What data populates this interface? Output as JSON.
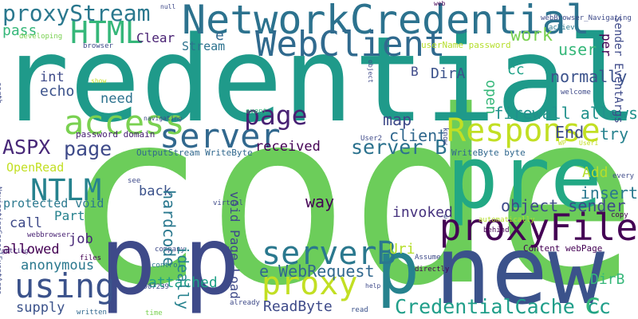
{
  "words": [
    {
      "text": "code",
      "color": "#6ccd5a",
      "vertical": false
    },
    {
      "text": "credential",
      "color": "#1f9a8a",
      "vertical": false
    },
    {
      "text": "p",
      "color": "#3e4a89",
      "vertical": false
    },
    {
      "text": "p",
      "color": "#3e4a89",
      "vertical": false
    },
    {
      "text": "p",
      "color": "#26828e",
      "vertical": false
    },
    {
      "text": "new",
      "color": "#3b528b",
      "vertical": false
    },
    {
      "text": "pre",
      "color": "#22a884",
      "vertical": false
    },
    {
      "text": "NetworkCredential",
      "color": "#2c728e",
      "vertical": false
    },
    {
      "text": "proxyFile",
      "color": "#440154",
      "vertical": false
    },
    {
      "text": "WebClient",
      "color": "#306a8e",
      "vertical": false
    },
    {
      "text": "Response",
      "color": "#c2df23",
      "vertical": false
    },
    {
      "text": "access",
      "color": "#7ad151",
      "vertical": false
    },
    {
      "text": "server",
      "color": "#31688e",
      "vertical": false
    },
    {
      "text": "serverB",
      "color": "#2a788e",
      "vertical": false
    },
    {
      "text": "proxy",
      "color": "#c2df23",
      "vertical": false
    },
    {
      "text": "using",
      "color": "#3b528b",
      "vertical": false
    },
    {
      "text": "HTML",
      "color": "#35b779",
      "vertical": false
    },
    {
      "text": "NTLM",
      "color": "#26828e",
      "vertical": false
    },
    {
      "text": "page",
      "color": "#482173",
      "vertical": false
    },
    {
      "text": "proxyStream",
      "color": "#2a788e",
      "vertical": false
    },
    {
      "text": "ASPX",
      "color": "#482878",
      "vertical": false
    },
    {
      "text": "page",
      "color": "#3e4a89",
      "vertical": false
    },
    {
      "text": "server B",
      "color": "#2c728e",
      "vertical": false
    },
    {
      "text": "c",
      "color": "#35b779",
      "vertical": false
    },
    {
      "text": "CredentialCache cc",
      "color": "#1f9e89",
      "vertical": false
    },
    {
      "text": "e WebRequest",
      "color": "#31688e",
      "vertical": false
    },
    {
      "text": "object sender",
      "color": "#3e4a89",
      "vertical": false
    },
    {
      "text": "work",
      "color": "#7ad151",
      "vertical": false
    },
    {
      "text": "user",
      "color": "#35b779",
      "vertical": false
    },
    {
      "text": "normally",
      "color": "#3b528b",
      "vertical": false
    },
    {
      "text": "firewall allows",
      "color": "#21918c",
      "vertical": false
    },
    {
      "text": "cc",
      "color": "#1fa187",
      "vertical": false
    },
    {
      "text": "End",
      "color": "#3e4a89",
      "vertical": false
    },
    {
      "text": "try",
      "color": "#26828e",
      "vertical": false
    },
    {
      "text": "insert",
      "color": "#2a788e",
      "vertical": false
    },
    {
      "text": "Add",
      "color": "#b5de2b",
      "vertical": false
    },
    {
      "text": "received",
      "color": "#440154",
      "vertical": false
    },
    {
      "text": "client",
      "color": "#31688e",
      "vertical": false
    },
    {
      "text": "map",
      "color": "#3e4a89",
      "vertical": false
    },
    {
      "text": "way",
      "color": "#440154",
      "vertical": false
    },
    {
      "text": "invoked",
      "color": "#46327e",
      "vertical": false
    },
    {
      "text": "DirA",
      "color": "#3b528b",
      "vertical": false
    },
    {
      "text": "B",
      "color": "#3e4a89",
      "vertical": false
    },
    {
      "text": "DirB",
      "color": "#35b779",
      "vertical": false
    },
    {
      "text": "Uri",
      "color": "#b5de2b",
      "vertical": false
    },
    {
      "text": "ReadByte",
      "color": "#3e4a89",
      "vertical": false
    },
    {
      "text": "attached",
      "color": "#1fa187",
      "vertical": false
    },
    {
      "text": "e",
      "color": "#31688e",
      "vertical": false
    },
    {
      "text": "Clear",
      "color": "#482173",
      "vertical": false
    },
    {
      "text": "Stream",
      "color": "#2c728e",
      "vertical": false
    },
    {
      "text": "need",
      "color": "#2c728e",
      "vertical": false
    },
    {
      "text": "int",
      "color": "#3e4a89",
      "vertical": false
    },
    {
      "text": "echo",
      "color": "#3b528b",
      "vertical": false
    },
    {
      "text": "pass",
      "color": "#35b779",
      "vertical": false
    },
    {
      "text": "back",
      "color": "#3b528b",
      "vertical": false
    },
    {
      "text": "OpenRead",
      "color": "#c2df23",
      "vertical": false
    },
    {
      "text": "protected void",
      "color": "#2a788e",
      "vertical": false
    },
    {
      "text": "call",
      "color": "#3e4a89",
      "vertical": false
    },
    {
      "text": "Part",
      "color": "#26828e",
      "vertical": false
    },
    {
      "text": "allowed",
      "color": "#440154",
      "vertical": false
    },
    {
      "text": "job",
      "color": "#482878",
      "vertical": false
    },
    {
      "text": "anonymous",
      "color": "#2a788e",
      "vertical": false
    },
    {
      "text": "supply",
      "color": "#3b528b",
      "vertical": false
    },
    {
      "text": "Content webPage",
      "color": "#440154",
      "vertical": false
    },
    {
      "text": "password domain",
      "color": "#482173",
      "vertical": false
    },
    {
      "text": "OutputStream WriteByte",
      "color": "#31688e",
      "vertical": false
    },
    {
      "text": "WriteByte byte",
      "color": "#31688e",
      "vertical": false
    },
    {
      "text": "userName password",
      "color": "#b5de2b",
      "vertical": false
    },
    {
      "text": "developing",
      "color": "#7ad151",
      "vertical": false
    },
    {
      "text": "browser",
      "color": "#3e4a89",
      "vertical": false
    },
    {
      "text": "show",
      "color": "#c2df23",
      "vertical": false
    },
    {
      "text": "navigating",
      "color": "#3e4a89",
      "vertical": false
    },
    {
      "text": "event",
      "color": "#35b779",
      "vertical": false
    },
    {
      "text": "getting",
      "color": "#482878",
      "vertical": false
    },
    {
      "text": "webbrowser",
      "color": "#482173",
      "vertical": false
    },
    {
      "text": "files",
      "color": "#440154",
      "vertical": false
    },
    {
      "text": "control",
      "color": "#2a788e",
      "vertical": false
    },
    {
      "text": "u007239",
      "color": "#3e4a89",
      "vertical": false
    },
    {
      "text": "written",
      "color": "#31688e",
      "vertical": false
    },
    {
      "text": "time",
      "color": "#7ad151",
      "vertical": false
    },
    {
      "text": "already",
      "color": "#3e4a89",
      "vertical": false
    },
    {
      "text": "read",
      "color": "#3b528b",
      "vertical": false
    },
    {
      "text": "Assume",
      "color": "#3e4a89",
      "vertical": false
    },
    {
      "text": "directly",
      "color": "#440154",
      "vertical": false
    },
    {
      "text": "automatically",
      "color": "#b5de2b",
      "vertical": false
    },
    {
      "text": "behind",
      "color": "#440154",
      "vertical": false
    },
    {
      "text": "welcome",
      "color": "#3e4a89",
      "vertical": false
    },
    {
      "text": "achieve",
      "color": "#2a788e",
      "vertical": false
    },
    {
      "text": "webBrowser_Navigating",
      "color": "#3e4a89",
      "vertical": false
    },
    {
      "text": "every",
      "color": "#3e4a89",
      "vertical": false
    },
    {
      "text": "copy",
      "color": "#440154",
      "vertical": false
    },
    {
      "text": "null",
      "color": "#3e4a89",
      "vertical": false
    },
    {
      "text": "web",
      "color": "#440154",
      "vertical": false
    },
    {
      "text": "company",
      "color": "#3e4a89",
      "vertical": false
    },
    {
      "text": "virtual",
      "color": "#3e4a89",
      "vertical": false
    },
    {
      "text": "see",
      "color": "#3e4a89",
      "vertical": false
    },
    {
      "text": "help",
      "color": "#3e4a89",
      "vertical": false
    },
    {
      "text": "User2",
      "color": "#3e4a89",
      "vertical": false
    },
    {
      "text": "WP",
      "color": "#c2df23",
      "vertical": false
    },
    {
      "text": "User1",
      "color": "#c2df23",
      "vertical": false
    },
    {
      "text": "e",
      "color": "#3e4a89",
      "vertical": false
    },
    {
      "text": "sender EventArgs",
      "color": "#3e4a89",
      "vertical": true
    },
    {
      "text": "per",
      "color": "#440154",
      "vertical": true
    },
    {
      "text": "open",
      "color": "#35b779",
      "vertical": true
    },
    {
      "text": "hardcode",
      "color": "#2a788e",
      "vertical": true
    },
    {
      "text": "void Page_Load",
      "color": "#3e4a89",
      "vertical": true
    },
    {
      "text": "ideally",
      "color": "#26828e",
      "vertical": true
    },
    {
      "text": "NavigatingCancelEventArgs",
      "color": "#3e4a89",
      "vertical": true
    },
    {
      "text": "earth",
      "color": "#3e4a89",
      "vertical": true
    },
    {
      "text": "object",
      "color": "#3e4a89",
      "vertical": true
    },
    {
      "text": "know",
      "color": "#3e4a89",
      "vertical": true
    }
  ]
}
